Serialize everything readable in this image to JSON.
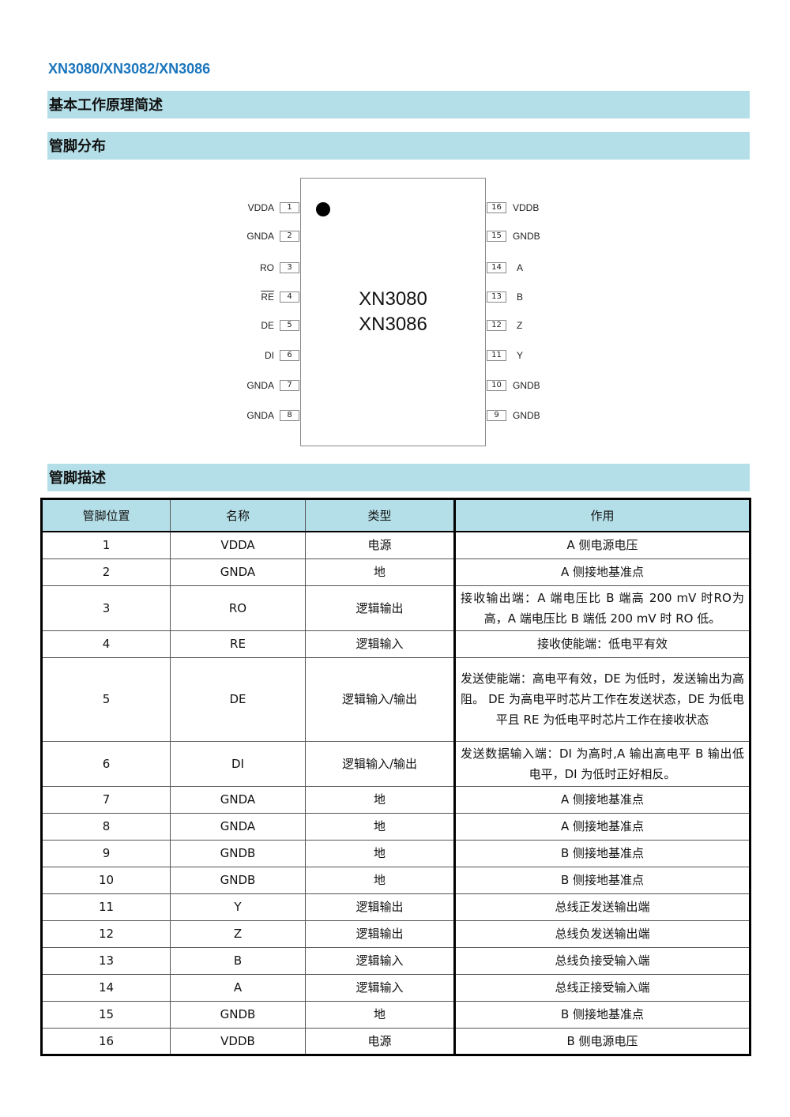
{
  "doc_title": "XN3080/XN3082/XN3086",
  "sections": [
    "基本工作原理简述",
    "管脚分布",
    "管脚描述"
  ],
  "chip": {
    "names": [
      "XN3080",
      "XN3086"
    ],
    "left_pins": [
      {
        "num": "1",
        "label": "VDDA"
      },
      {
        "num": "2",
        "label": "GNDA"
      },
      {
        "num": "3",
        "label": "RO"
      },
      {
        "num": "4",
        "label": "RE",
        "overline": true
      },
      {
        "num": "5",
        "label": "DE"
      },
      {
        "num": "6",
        "label": "DI"
      },
      {
        "num": "7",
        "label": "GNDA"
      },
      {
        "num": "8",
        "label": "GNDA"
      }
    ],
    "right_pins": [
      {
        "num": "16",
        "label": "VDDB"
      },
      {
        "num": "15",
        "label": "GNDB"
      },
      {
        "num": "14",
        "label": "A"
      },
      {
        "num": "13",
        "label": "B"
      },
      {
        "num": "12",
        "label": "Z"
      },
      {
        "num": "11",
        "label": "Y"
      },
      {
        "num": "10",
        "label": "GNDB"
      },
      {
        "num": "9",
        "label": "GNDB"
      }
    ]
  },
  "table": {
    "headers": [
      "管脚位置",
      "名称",
      "类型",
      "作用"
    ],
    "rows": [
      [
        "1",
        "VDDA",
        "电源",
        "A 侧电源电压"
      ],
      [
        "2",
        "GNDA",
        "地",
        "A 侧接地基准点"
      ],
      [
        "3",
        "RO",
        "逻辑输出",
        "接收输出端：A 端电压比 B 端高 200 mV 时RO为高，A 端电压比 B 端低 200 mV 时 RO 低。"
      ],
      [
        "4",
        "RE",
        "逻辑输入",
        "接收使能端：低电平有效"
      ],
      [
        "5",
        "DE",
        "逻辑输入/输出",
        "发送使能端：高电平有效，DE 为低时，发送输出为高阻。 DE 为高电平时芯片工作在发送状态，DE 为低电平且 RE 为低电平时芯片工作在接收状态"
      ],
      [
        "6",
        "DI",
        "逻辑输入/输出",
        "发送数据输入端：DI 为高时,A 输出高电平 B 输出低电平，DI 为低时正好相反。"
      ],
      [
        "7",
        "GNDA",
        "地",
        "A 侧接地基准点"
      ],
      [
        "8",
        "GNDA",
        "地",
        "A 侧接地基准点"
      ],
      [
        "9",
        "GNDB",
        "地",
        "B 侧接地基准点"
      ],
      [
        "10",
        "GNDB",
        "地",
        "B 侧接地基准点"
      ],
      [
        "11",
        "Y",
        "逻辑输出",
        "总线正发送输出端"
      ],
      [
        "12",
        "Z",
        "逻辑输出",
        "总线负发送输出端"
      ],
      [
        "13",
        "B",
        "逻辑输入",
        "总线负接受输入端"
      ],
      [
        "14",
        "A",
        "逻辑输入",
        "总线正接受输入端"
      ],
      [
        "15",
        "GNDB",
        "地",
        "B 侧接地基准点"
      ],
      [
        "16",
        "VDDB",
        "电源",
        "B 侧电源电压"
      ]
    ]
  },
  "colors": {
    "title": "#1a75bc",
    "band": "#b5dfe8"
  }
}
